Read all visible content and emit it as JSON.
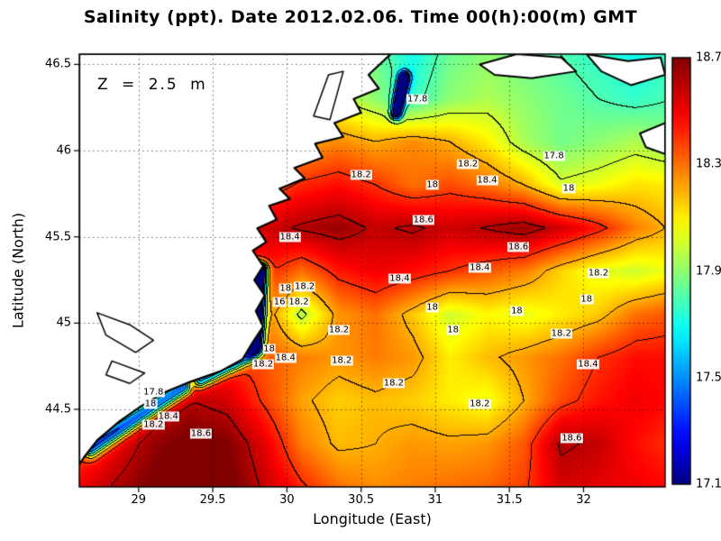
{
  "chart_data": {
    "type": "heatmap",
    "subtype": "filled-contour-map",
    "title": "Salinity (ppt). Date 2012.02.06. Time 00(h):00(m) GMT",
    "annotation": "Z = 2.5 m",
    "xlabel": "Longitude (East)",
    "ylabel": "Latitude (North)",
    "x_ticks": [
      {
        "value": 29,
        "label": "29"
      },
      {
        "value": 29.5,
        "label": "29.5"
      },
      {
        "value": 30,
        "label": "30"
      },
      {
        "value": 30.5,
        "label": "30.5"
      },
      {
        "value": 31,
        "label": "31"
      },
      {
        "value": 31.5,
        "label": "31.5"
      },
      {
        "value": 32,
        "label": "32"
      }
    ],
    "y_ticks": [
      {
        "value": 44.5,
        "label": "44.5"
      },
      {
        "value": 45,
        "label": "45"
      },
      {
        "value": 45.5,
        "label": "45.5"
      },
      {
        "value": 46,
        "label": "46"
      },
      {
        "value": 46.5,
        "label": "46.5"
      }
    ],
    "lon_range": [
      28.6,
      32.55
    ],
    "lat_range": [
      44.05,
      46.56
    ],
    "colormap": "jet",
    "colorbar": {
      "min": 17.1,
      "max": 18.7,
      "ticks": [
        {
          "value": 18.7,
          "label": "18.7"
        },
        {
          "value": 18.3,
          "label": "18.3"
        },
        {
          "value": 17.9,
          "label": "17.9"
        },
        {
          "value": 17.5,
          "label": "17.5"
        },
        {
          "value": 17.1,
          "label": "17.1"
        }
      ]
    },
    "contour_levels": [
      17.2,
      17.4,
      17.6,
      17.8,
      18.0,
      18.2,
      18.4,
      18.6
    ],
    "grid": {
      "lons": [
        28.6,
        28.85,
        29.1,
        29.35,
        29.6,
        29.85,
        30.1,
        30.35,
        30.6,
        30.85,
        31.1,
        31.35,
        31.6,
        31.85,
        32.1,
        32.35,
        32.6
      ],
      "lats": [
        44.05,
        44.3,
        44.55,
        44.8,
        45.05,
        45.3,
        45.55,
        45.8,
        46.05,
        46.3,
        46.55
      ],
      "salinity": [
        [
          18.5,
          18.62,
          18.72,
          18.76,
          18.74,
          18.58,
          18.42,
          18.3,
          18.25,
          18.28,
          18.3,
          18.32,
          18.38,
          18.55,
          18.52,
          18.5,
          18.46
        ],
        [
          18.35,
          18.5,
          18.66,
          18.74,
          18.7,
          18.52,
          18.28,
          18.18,
          18.2,
          18.24,
          18.22,
          18.24,
          18.34,
          18.62,
          18.58,
          18.46,
          18.4
        ],
        [
          18.2,
          18.32,
          18.5,
          18.6,
          18.55,
          18.38,
          18.22,
          18.15,
          18.18,
          18.15,
          18.1,
          18.05,
          18.2,
          18.36,
          18.45,
          18.5,
          18.46
        ],
        [
          18.2,
          18.22,
          18.25,
          18.32,
          18.4,
          18.34,
          18.28,
          18.24,
          18.28,
          18.24,
          18.1,
          18.18,
          18.24,
          18.3,
          18.4,
          18.46,
          18.46
        ],
        [
          18.2,
          18.2,
          18.22,
          18.26,
          18.32,
          18.3,
          17.96,
          18.24,
          18.3,
          18.16,
          18.0,
          18.08,
          18.04,
          18.1,
          18.16,
          18.3,
          18.35
        ],
        [
          18.2,
          18.2,
          18.25,
          18.3,
          18.4,
          18.44,
          18.3,
          18.44,
          18.5,
          18.46,
          18.4,
          18.34,
          18.28,
          18.14,
          18.04,
          18.0,
          18.06
        ],
        [
          18.25,
          18.3,
          18.35,
          18.42,
          18.5,
          18.55,
          18.62,
          18.66,
          18.58,
          18.62,
          18.56,
          18.61,
          18.66,
          18.56,
          18.44,
          18.28,
          18.18
        ],
        [
          18.2,
          18.25,
          18.3,
          18.35,
          18.38,
          18.32,
          18.42,
          18.46,
          18.4,
          18.3,
          18.36,
          18.3,
          18.2,
          18.02,
          18.06,
          18.12,
          18.1
        ],
        [
          18.1,
          18.12,
          18.15,
          18.18,
          18.2,
          18.22,
          18.2,
          18.26,
          18.2,
          18.26,
          18.2,
          18.1,
          17.94,
          17.86,
          17.9,
          17.95,
          17.9
        ],
        [
          18.0,
          18.0,
          18.0,
          18.0,
          18.05,
          18.05,
          18.05,
          18.0,
          17.9,
          17.76,
          17.9,
          17.95,
          17.9,
          17.85,
          17.8,
          17.76,
          17.8
        ],
        [
          18.0,
          18.0,
          18.0,
          18.0,
          18.0,
          17.98,
          17.96,
          17.95,
          17.85,
          17.7,
          17.85,
          17.9,
          17.85,
          17.8,
          17.75,
          17.7,
          17.76
        ]
      ]
    },
    "river_plumes": [
      {
        "lon1": 29.79,
        "lat1": 44.86,
        "lon2": 29.82,
        "lat2": 45.3,
        "amp": 1.5,
        "sigma": 0.05
      },
      {
        "lon1": 29.42,
        "lat1": 44.67,
        "lon2": 29.74,
        "lat2": 44.81,
        "amp": 0.9,
        "sigma": 0.045
      },
      {
        "lon1": 28.68,
        "lat1": 44.28,
        "lon2": 29.3,
        "lat2": 44.63,
        "amp": 1.05,
        "sigma": 0.055
      },
      {
        "lon1": 30.74,
        "lat1": 46.22,
        "lon2": 30.79,
        "lat2": 46.42,
        "amp": 1.0,
        "sigma": 0.04
      }
    ],
    "coastline": [
      [
        28.6,
        44.18
      ],
      [
        28.63,
        44.22
      ],
      [
        28.72,
        44.32
      ],
      [
        28.87,
        44.43
      ],
      [
        29.02,
        44.52
      ],
      [
        29.18,
        44.6
      ],
      [
        29.35,
        44.66
      ],
      [
        29.55,
        44.72
      ],
      [
        29.7,
        44.79
      ],
      [
        29.77,
        44.89
      ],
      [
        29.84,
        44.98
      ],
      [
        29.79,
        45.07
      ],
      [
        29.85,
        45.16
      ],
      [
        29.78,
        45.25
      ],
      [
        29.84,
        45.33
      ],
      [
        29.77,
        45.42
      ],
      [
        29.86,
        45.47
      ],
      [
        29.8,
        45.55
      ],
      [
        29.93,
        45.6
      ],
      [
        29.88,
        45.68
      ],
      [
        30.02,
        45.72
      ],
      [
        29.95,
        45.78
      ],
      [
        30.12,
        45.84
      ],
      [
        30.05,
        45.9
      ],
      [
        30.24,
        45.96
      ],
      [
        30.19,
        46.04
      ],
      [
        30.38,
        46.08
      ],
      [
        30.32,
        46.16
      ],
      [
        30.5,
        46.22
      ],
      [
        30.45,
        46.3
      ],
      [
        30.62,
        46.36
      ],
      [
        30.55,
        46.44
      ],
      [
        30.7,
        46.56
      ],
      [
        28.6,
        46.56
      ]
    ],
    "islands": [
      [
        [
          31.3,
          46.5
        ],
        [
          31.55,
          46.56
        ],
        [
          31.85,
          46.54
        ],
        [
          31.95,
          46.46
        ],
        [
          31.65,
          46.42
        ],
        [
          31.4,
          46.44
        ]
      ],
      [
        [
          32.02,
          46.56
        ],
        [
          32.3,
          46.52
        ],
        [
          32.52,
          46.54
        ],
        [
          32.55,
          46.44
        ],
        [
          32.32,
          46.38
        ],
        [
          32.12,
          46.46
        ]
      ],
      [
        [
          32.38,
          46.1
        ],
        [
          32.55,
          46.16
        ],
        [
          32.55,
          45.98
        ],
        [
          32.42,
          46.02
        ]
      ]
    ],
    "lakes": [
      [
        [
          28.72,
          45.06
        ],
        [
          28.94,
          44.99
        ],
        [
          29.1,
          44.9
        ],
        [
          28.98,
          44.83
        ],
        [
          28.78,
          44.93
        ]
      ],
      [
        [
          28.82,
          44.78
        ],
        [
          29.04,
          44.71
        ],
        [
          28.94,
          44.65
        ],
        [
          28.78,
          44.7
        ]
      ],
      [
        [
          30.18,
          46.2
        ],
        [
          30.28,
          46.44
        ],
        [
          30.38,
          46.46
        ],
        [
          30.29,
          46.18
        ]
      ]
    ],
    "contour_labels": [
      {
        "lon": 30.88,
        "lat": 46.3,
        "text": "17.8"
      },
      {
        "lon": 31.22,
        "lat": 45.92,
        "text": "18.2"
      },
      {
        "lon": 30.98,
        "lat": 45.8,
        "text": "18"
      },
      {
        "lon": 31.35,
        "lat": 45.83,
        "text": "18.4"
      },
      {
        "lon": 30.5,
        "lat": 45.86,
        "text": "18.2"
      },
      {
        "lon": 31.8,
        "lat": 45.97,
        "text": "17.8"
      },
      {
        "lon": 31.9,
        "lat": 45.78,
        "text": "18"
      },
      {
        "lon": 30.92,
        "lat": 45.6,
        "text": "18.6"
      },
      {
        "lon": 30.02,
        "lat": 45.5,
        "text": "18.4"
      },
      {
        "lon": 31.56,
        "lat": 45.44,
        "text": "18.6"
      },
      {
        "lon": 31.3,
        "lat": 45.32,
        "text": "18.4"
      },
      {
        "lon": 32.1,
        "lat": 45.29,
        "text": "18.2"
      },
      {
        "lon": 32.02,
        "lat": 45.14,
        "text": "18"
      },
      {
        "lon": 30.76,
        "lat": 45.26,
        "text": "18.4"
      },
      {
        "lon": 30.98,
        "lat": 45.09,
        "text": "18"
      },
      {
        "lon": 31.55,
        "lat": 45.07,
        "text": "18"
      },
      {
        "lon": 30.12,
        "lat": 45.21,
        "text": "18.2"
      },
      {
        "lon": 29.99,
        "lat": 45.2,
        "text": "18"
      },
      {
        "lon": 29.95,
        "lat": 45.12,
        "text": "16"
      },
      {
        "lon": 30.08,
        "lat": 45.12,
        "text": "18.2"
      },
      {
        "lon": 30.35,
        "lat": 44.96,
        "text": "18.2"
      },
      {
        "lon": 31.12,
        "lat": 44.96,
        "text": "18"
      },
      {
        "lon": 31.85,
        "lat": 44.94,
        "text": "18.2"
      },
      {
        "lon": 32.03,
        "lat": 44.76,
        "text": "18.4"
      },
      {
        "lon": 29.88,
        "lat": 44.85,
        "text": "18"
      },
      {
        "lon": 29.99,
        "lat": 44.8,
        "text": "18.4"
      },
      {
        "lon": 29.84,
        "lat": 44.76,
        "text": "18.2"
      },
      {
        "lon": 30.37,
        "lat": 44.78,
        "text": "18.2"
      },
      {
        "lon": 30.72,
        "lat": 44.65,
        "text": "18.2"
      },
      {
        "lon": 31.3,
        "lat": 44.53,
        "text": "18.2"
      },
      {
        "lon": 31.92,
        "lat": 44.33,
        "text": "18.6"
      },
      {
        "lon": 29.1,
        "lat": 44.6,
        "text": "17.8"
      },
      {
        "lon": 29.08,
        "lat": 44.53,
        "text": "18"
      },
      {
        "lon": 29.2,
        "lat": 44.46,
        "text": "18.4"
      },
      {
        "lon": 29.1,
        "lat": 44.41,
        "text": "18.2"
      },
      {
        "lon": 29.42,
        "lat": 44.36,
        "text": "18.6"
      }
    ]
  }
}
